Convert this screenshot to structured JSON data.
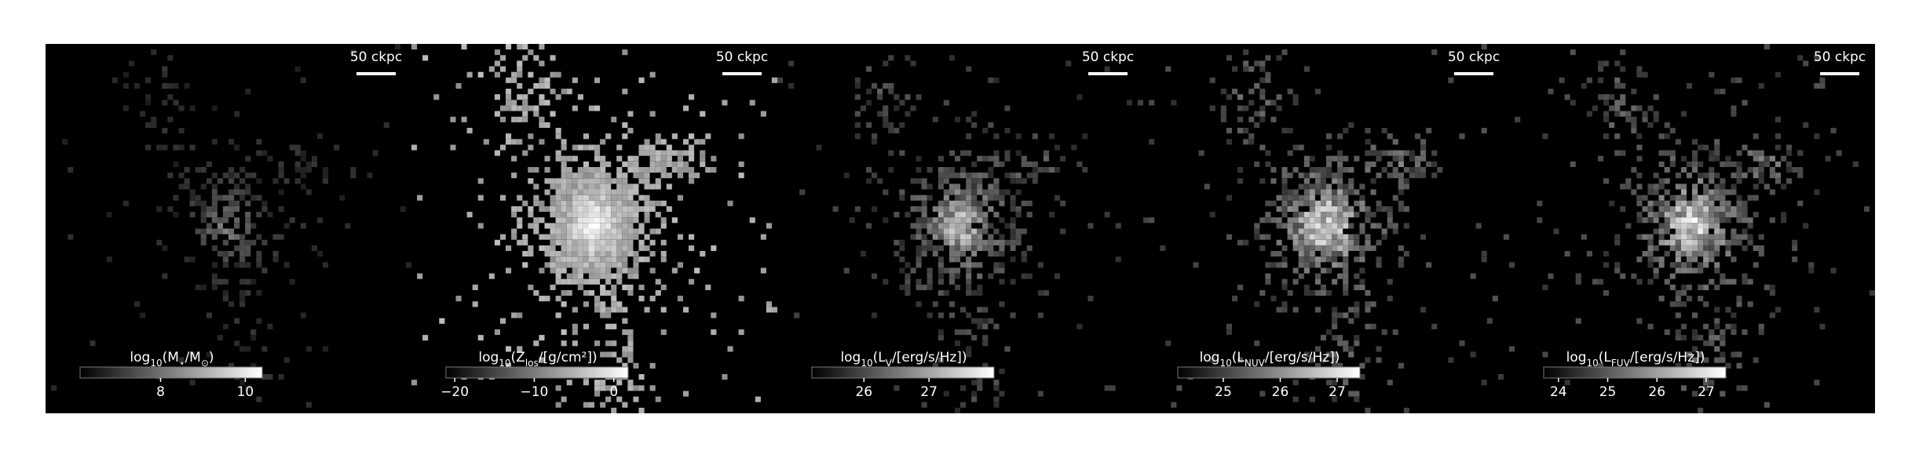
{
  "panels": [
    {
      "scalebar": "50 ckpc",
      "colorbar": {
        "label": [
          "log",
          "10",
          "(M",
          "⋆",
          "/M",
          "⊙",
          ")"
        ],
        "lim": [
          6.1,
          10.4
        ],
        "ticks": [
          8,
          10
        ]
      }
    },
    {
      "scalebar": "50 ckpc",
      "colorbar": {
        "label": [
          "log",
          "10",
          "(Z",
          "los",
          "/[g/cm²])"
        ],
        "lim": [
          -21.1,
          1.8
        ],
        "ticks": [
          {
            "value": -20,
            "label": "−20"
          },
          {
            "value": -10,
            "label": "−10"
          },
          0
        ]
      }
    },
    {
      "scalebar": "50 ckpc",
      "colorbar": {
        "label": [
          "log",
          "10",
          "(L",
          "V",
          "/[erg/s/Hz])"
        ],
        "lim": [
          25.2,
          28.0
        ],
        "ticks": [
          26,
          27
        ]
      }
    },
    {
      "scalebar": "50 ckpc",
      "colorbar": {
        "label": [
          "log",
          "10",
          "(L",
          "NUV",
          "/[erg/s/Hz])"
        ],
        "lim": [
          24.2,
          27.4
        ],
        "ticks": [
          25,
          26,
          27
        ]
      }
    },
    {
      "scalebar": "50 ckpc",
      "colorbar": {
        "label": [
          "log",
          "10",
          "(L",
          "FUV",
          "/[erg/s/Hz])"
        ],
        "lim": [
          23.7,
          27.4
        ],
        "ticks": [
          24,
          25,
          26,
          27
        ]
      }
    }
  ]
}
